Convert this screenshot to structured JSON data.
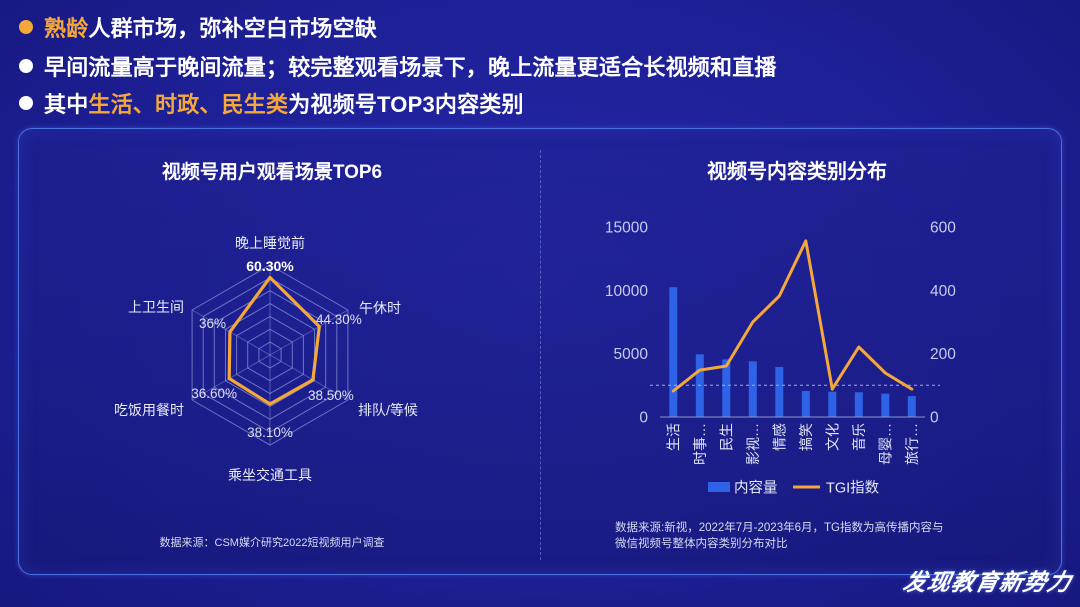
{
  "bullets": [
    {
      "dot": "orange",
      "segments": [
        {
          "text": "熟龄",
          "highlight": true
        },
        {
          "text": "人群市场，弥补空白市场空缺",
          "highlight": false
        }
      ]
    },
    {
      "dot": "white",
      "segments": [
        {
          "text": "早间流量高于晚间流量；较完整观看场景下，晚上流量更适合长视频和直播",
          "highlight": false
        }
      ]
    },
    {
      "dot": "white",
      "segments": [
        {
          "text": "其中",
          "highlight": false
        },
        {
          "text": "生活、时政、民生类",
          "highlight": true
        },
        {
          "text": "为视频号TOP3内容类别",
          "highlight": false
        }
      ]
    }
  ],
  "colors": {
    "background": "#1d1f95",
    "accent_orange": "#f5a83a",
    "bar_blue": "#2e63e8",
    "panel_border": "#4b70e2",
    "grid_line": "#8591d6",
    "axis_text": "#c6cced",
    "text": "#ffffff"
  },
  "chart_data": [
    {
      "type": "radar",
      "title": "视频号用户观看场景TOP6",
      "categories": [
        "晚上睡觉前",
        "午休时",
        "排队/等候",
        "乘坐交通工具",
        "吃饭用餐时",
        "上卫生间"
      ],
      "values": [
        60.3,
        44.3,
        38.5,
        38.1,
        36.6,
        36.0
      ],
      "value_labels": [
        "60.30%",
        "44.30%",
        "38.50%",
        "38.10%",
        "36.60%",
        "36%"
      ],
      "rlim": [
        0,
        70
      ],
      "grid": true,
      "series_color": "#f5a83a",
      "source": "数据来源：CSM媒介研究2022短视频用户调查"
    },
    {
      "type": "bar",
      "title": "视频号内容类别分布",
      "categories": [
        "生活",
        "时事…",
        "民生",
        "影视…",
        "情感",
        "搞笑",
        "文化",
        "音乐",
        "母婴…",
        "旅行…"
      ],
      "series": [
        {
          "name": "内容量",
          "type": "bar",
          "axis": "left",
          "color": "#2e63e8",
          "values": [
            10250,
            4950,
            4550,
            4400,
            3950,
            2050,
            2000,
            1950,
            1850,
            1650
          ]
        },
        {
          "name": "TGI指数",
          "type": "line",
          "axis": "right",
          "color": "#f5a83a",
          "values": [
            82,
            148,
            161,
            300,
            382,
            556,
            88,
            221,
            139,
            88
          ]
        }
      ],
      "ylim": [
        0,
        15000
      ],
      "yticks": [
        0,
        5000,
        10000,
        15000
      ],
      "y2lim": [
        0,
        600
      ],
      "y2ticks": [
        0,
        200,
        400,
        600
      ],
      "reference_line": {
        "axis": "right",
        "value": 100,
        "style": "dashed"
      },
      "grid": false,
      "legend": "bottom",
      "source_lines": [
        "数据来源:新视，2022年7月-2023年6月，TG指数为高传播内容与",
        "微信视频号整体内容类别分布对比"
      ]
    }
  ],
  "logo": {
    "text": "发现教育新势力"
  }
}
